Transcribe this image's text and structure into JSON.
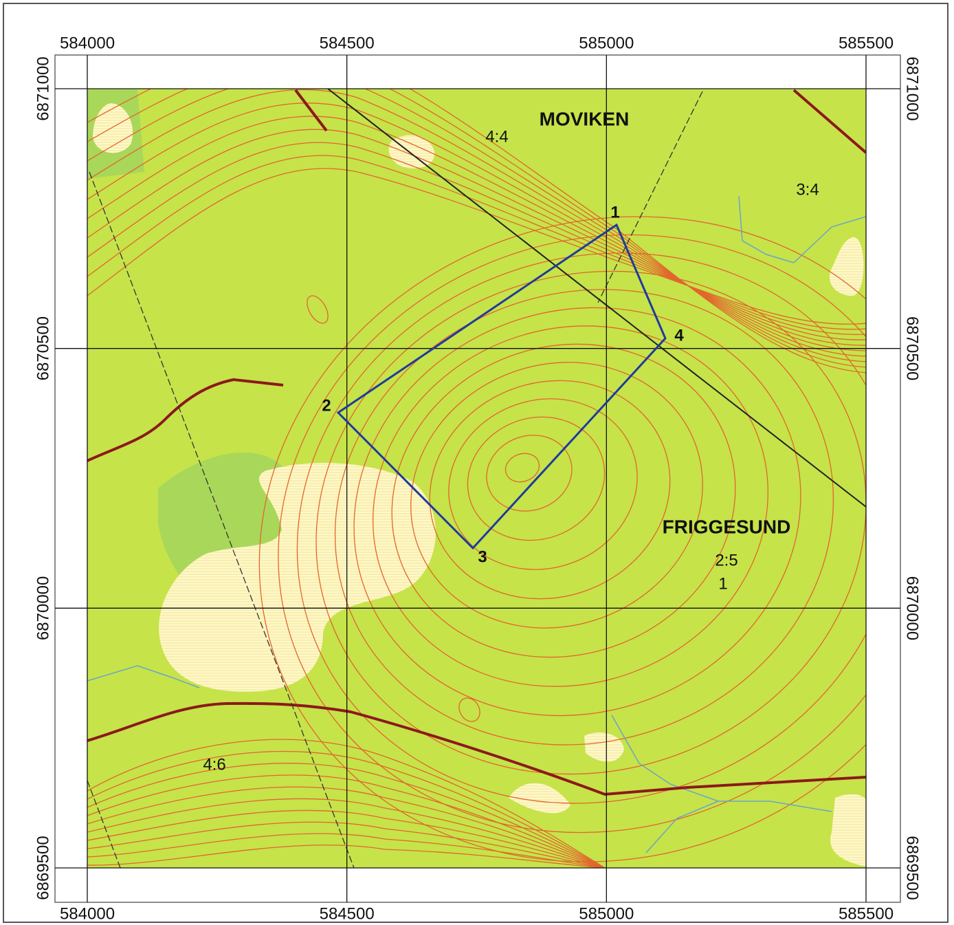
{
  "grid": {
    "easting": [
      584000,
      584500,
      585000,
      585500
    ],
    "northing": [
      6871000,
      6870500,
      6870000,
      6869500
    ]
  },
  "places": [
    "MOVIKEN",
    "FRIGGESUND"
  ],
  "map_labels": [
    "4:4",
    "3:4",
    "2:5",
    "1",
    "4:6"
  ],
  "corners": [
    "1",
    "2",
    "3",
    "4"
  ]
}
